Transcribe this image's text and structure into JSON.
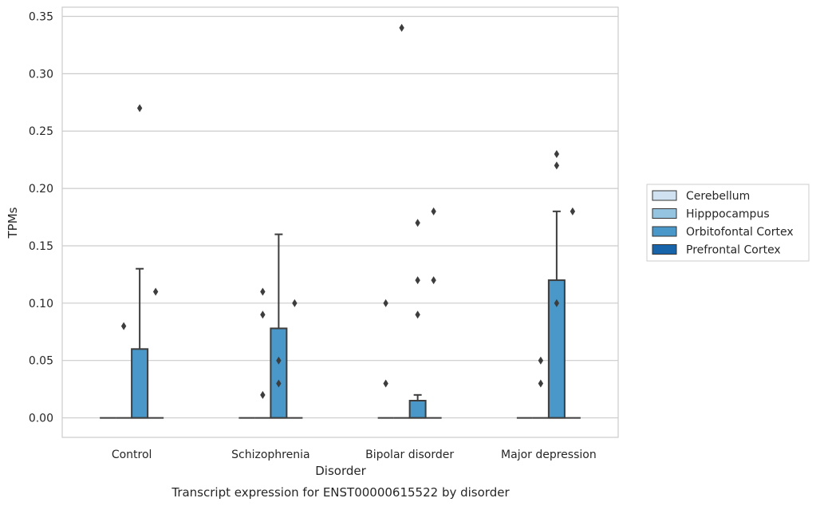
{
  "chart_data": {
    "type": "box",
    "title": "",
    "caption": "Transcript expression for ENST00000615522 by disorder",
    "xlabel": "Disorder",
    "ylabel": "TPMs",
    "ylim": [
      -0.017,
      0.358
    ],
    "yticks": [
      "0.00",
      "0.05",
      "0.10",
      "0.15",
      "0.20",
      "0.25",
      "0.30",
      "0.35"
    ],
    "ytick_values": [
      0,
      0.05,
      0.1,
      0.15,
      0.2,
      0.25,
      0.3,
      0.35
    ],
    "grid": true,
    "legend_position": "right",
    "categories": [
      "Control",
      "Schizophrenia",
      "Bipolar disorder",
      "Major depression"
    ],
    "series": [
      {
        "name": "Cerebellum",
        "color": "#d0e1f2",
        "boxes": [
          {
            "q1": 0,
            "median": 0,
            "q3": 0,
            "whisker_low": 0,
            "whisker_high": 0,
            "outliers": []
          },
          {
            "q1": 0,
            "median": 0,
            "q3": 0,
            "whisker_low": 0,
            "whisker_high": 0,
            "outliers": []
          },
          {
            "q1": 0,
            "median": 0,
            "q3": 0,
            "whisker_low": 0,
            "whisker_high": 0,
            "outliers": [
              0.03,
              0.1
            ]
          },
          {
            "q1": 0,
            "median": 0,
            "q3": 0,
            "whisker_low": 0,
            "whisker_high": 0,
            "outliers": []
          }
        ]
      },
      {
        "name": "Hipppocampus",
        "color": "#94c4df",
        "boxes": [
          {
            "q1": 0,
            "median": 0,
            "q3": 0,
            "whisker_low": 0,
            "whisker_high": 0,
            "outliers": [
              0.08
            ]
          },
          {
            "q1": 0,
            "median": 0,
            "q3": 0,
            "whisker_low": 0,
            "whisker_high": 0,
            "outliers": [
              0.02,
              0.09,
              0.11
            ]
          },
          {
            "q1": 0,
            "median": 0,
            "q3": 0,
            "whisker_low": 0,
            "whisker_high": 0,
            "outliers": [
              0.34
            ]
          },
          {
            "q1": 0,
            "median": 0,
            "q3": 0,
            "whisker_low": 0,
            "whisker_high": 0,
            "outliers": [
              0.03,
              0.05
            ]
          }
        ]
      },
      {
        "name": "Orbitofontal Cortex",
        "color": "#4a98c9",
        "boxes": [
          {
            "q1": 0,
            "median": 0,
            "q3": 0.06,
            "whisker_low": 0,
            "whisker_high": 0.13,
            "outliers": [
              0.27
            ]
          },
          {
            "q1": 0,
            "median": 0,
            "q3": 0.078,
            "whisker_low": 0,
            "whisker_high": 0.16,
            "outliers": [
              0.03,
              0.05
            ]
          },
          {
            "q1": 0,
            "median": 0,
            "q3": 0.015,
            "whisker_low": 0,
            "whisker_high": 0.02,
            "outliers": [
              0.09,
              0.12,
              0.17
            ]
          },
          {
            "q1": 0,
            "median": 0,
            "q3": 0.12,
            "whisker_low": 0,
            "whisker_high": 0.18,
            "outliers": [
              0.1,
              0.22,
              0.23
            ]
          }
        ]
      },
      {
        "name": "Prefrontal Cortex",
        "color": "#1764ab",
        "boxes": [
          {
            "q1": 0,
            "median": 0,
            "q3": 0,
            "whisker_low": 0,
            "whisker_high": 0,
            "outliers": [
              0.11
            ]
          },
          {
            "q1": 0,
            "median": 0,
            "q3": 0,
            "whisker_low": 0,
            "whisker_high": 0,
            "outliers": [
              0.1
            ]
          },
          {
            "q1": 0,
            "median": 0,
            "q3": 0,
            "whisker_low": 0,
            "whisker_high": 0,
            "outliers": [
              0.12,
              0.18
            ]
          },
          {
            "q1": 0,
            "median": 0,
            "q3": 0,
            "whisker_low": 0,
            "whisker_high": 0,
            "outliers": [
              0.18
            ]
          }
        ]
      }
    ]
  }
}
